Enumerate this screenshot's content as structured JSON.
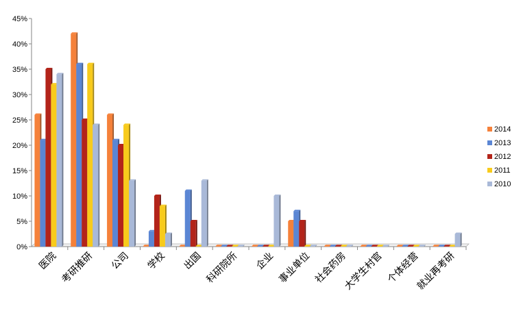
{
  "chart_data": {
    "type": "bar",
    "categories": [
      "医院",
      "考研推研",
      "公司",
      "学校",
      "出国",
      "科研院所",
      "企业",
      "事业单位",
      "社会药房",
      "大学生村官",
      "个体经营",
      "就业再考研"
    ],
    "series": [
      {
        "name": "2014",
        "color": "#f5813a",
        "values": [
          26,
          42,
          26,
          0,
          0,
          0,
          0,
          5,
          0,
          0,
          0,
          0
        ]
      },
      {
        "name": "2013",
        "color": "#5b86d4",
        "values": [
          21,
          36,
          21,
          3,
          11,
          0,
          0,
          7,
          0,
          0,
          0,
          0
        ]
      },
      {
        "name": "2012",
        "color": "#b3241a",
        "values": [
          35,
          25,
          20,
          10,
          5,
          0,
          0,
          5,
          0,
          0,
          0,
          0
        ]
      },
      {
        "name": "2011",
        "color": "#f8cb1c",
        "values": [
          32,
          36,
          24,
          8,
          0,
          0,
          0,
          0,
          0,
          0,
          0,
          0
        ]
      },
      {
        "name": "2010",
        "color": "#a9b9d8",
        "values": [
          34,
          24,
          13,
          2.5,
          13,
          0,
          10,
          0,
          0,
          0,
          0,
          2.5
        ]
      }
    ],
    "yticks": [
      "0%",
      "5%",
      "10%",
      "15%",
      "20%",
      "25%",
      "30%",
      "35%",
      "40%",
      "45%"
    ],
    "ylim": [
      0,
      45
    ],
    "legend_position": "right",
    "grid": false
  }
}
